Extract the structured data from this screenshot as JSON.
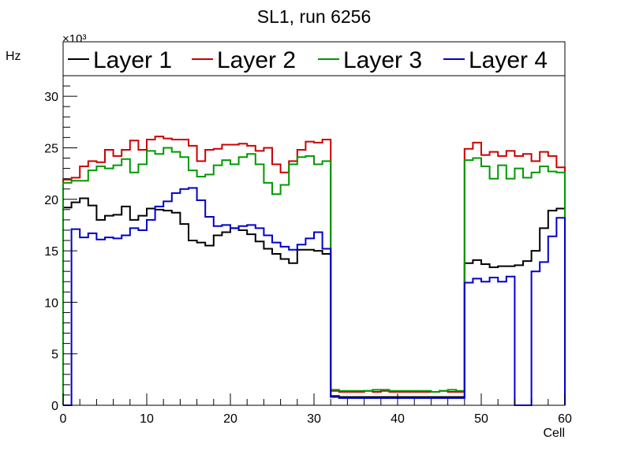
{
  "chart_data": {
    "type": "line",
    "style": "step-histogram",
    "title": "SL1, run 6256",
    "xlabel": "Cell",
    "ylabel": "Hz",
    "y_multiplier": "×10³",
    "xlim": [
      0,
      60
    ],
    "ylim": [
      0,
      32
    ],
    "x_ticks": [
      0,
      10,
      20,
      30,
      40,
      50,
      60
    ],
    "y_ticks": [
      0,
      5,
      10,
      15,
      20,
      25,
      30
    ],
    "legend_position": "top",
    "grid": false,
    "bin_edges_start": 0,
    "bin_width": 1,
    "series": [
      {
        "name": "Layer 1",
        "color": "#000000",
        "values": [
          19.2,
          19.7,
          20.1,
          19.4,
          18.0,
          18.4,
          18.5,
          19.3,
          18.0,
          18.4,
          19.1,
          19.0,
          18.9,
          18.7,
          17.6,
          16.0,
          15.8,
          15.5,
          16.5,
          16.8,
          17.2,
          17.0,
          16.6,
          15.9,
          15.2,
          14.7,
          14.2,
          13.8,
          15.1,
          15.1,
          15.0,
          14.7,
          0.9,
          0.8,
          0.8,
          0.8,
          0.8,
          0.8,
          0.8,
          0.8,
          0.8,
          0.8,
          0.8,
          0.8,
          0.8,
          0.8,
          0.8,
          0.8,
          13.8,
          14.1,
          13.7,
          13.4,
          13.5,
          13.5,
          13.6,
          14.0,
          15.0,
          17.2,
          18.9,
          19.1
        ]
      },
      {
        "name": "Layer 2",
        "color": "#cc0000",
        "values": [
          21.9,
          22.1,
          23.2,
          23.7,
          23.6,
          24.8,
          24.2,
          24.8,
          25.7,
          24.8,
          25.8,
          26.1,
          25.9,
          25.8,
          25.8,
          25.2,
          23.7,
          24.8,
          24.9,
          25.3,
          25.3,
          25.4,
          25.2,
          24.7,
          25.0,
          23.4,
          22.6,
          23.7,
          24.8,
          25.6,
          25.5,
          25.8,
          1.4,
          1.3,
          1.3,
          1.3,
          1.4,
          1.3,
          1.4,
          1.3,
          1.3,
          1.3,
          1.3,
          1.3,
          1.3,
          1.4,
          1.3,
          1.3,
          24.9,
          25.5,
          24.3,
          24.6,
          24.2,
          24.7,
          24.2,
          24.4,
          23.7,
          24.6,
          24.2,
          23.1
        ]
      },
      {
        "name": "Layer 3",
        "color": "#009900",
        "values": [
          21.6,
          21.8,
          21.8,
          22.8,
          23.2,
          23.0,
          23.3,
          23.9,
          22.6,
          23.4,
          24.7,
          24.4,
          25.0,
          24.6,
          24.1,
          22.8,
          22.2,
          22.4,
          23.3,
          23.8,
          23.4,
          24.1,
          24.4,
          23.4,
          21.6,
          20.5,
          21.4,
          23.4,
          24.1,
          24.2,
          23.4,
          23.7,
          1.5,
          1.4,
          1.4,
          1.4,
          1.4,
          1.5,
          1.5,
          1.4,
          1.4,
          1.4,
          1.4,
          1.4,
          1.3,
          1.4,
          1.5,
          1.4,
          23.8,
          24.0,
          23.2,
          22.0,
          23.3,
          22.0,
          23.0,
          22.1,
          22.6,
          23.2,
          22.7,
          22.6
        ]
      },
      {
        "name": "Layer 4",
        "color": "#0000cc",
        "values": [
          0.0,
          17.1,
          16.3,
          16.7,
          16.1,
          16.3,
          16.2,
          16.5,
          17.2,
          17.0,
          18.0,
          19.3,
          19.8,
          20.6,
          21.0,
          21.1,
          19.9,
          18.3,
          17.4,
          17.5,
          17.2,
          17.4,
          17.5,
          17.2,
          16.5,
          15.8,
          15.4,
          15.1,
          15.6,
          16.2,
          16.8,
          15.2,
          0.8,
          0.7,
          0.7,
          0.7,
          0.7,
          0.7,
          0.7,
          0.7,
          0.7,
          0.7,
          0.7,
          0.7,
          0.7,
          0.7,
          0.7,
          0.7,
          11.9,
          12.3,
          12.0,
          12.4,
          12.0,
          12.5,
          0.0,
          0.0,
          13.0,
          13.9,
          16.4,
          18.2
        ]
      }
    ]
  }
}
